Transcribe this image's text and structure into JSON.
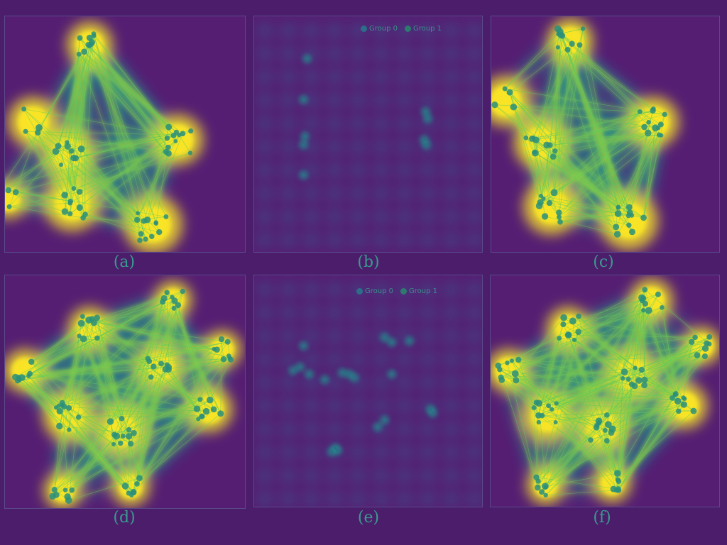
{
  "panels": [
    {
      "id": "a",
      "caption": "(a)",
      "kind": "heat"
    },
    {
      "id": "b",
      "caption": "(b)",
      "kind": "scatter"
    },
    {
      "id": "c",
      "caption": "(c)",
      "kind": "heat"
    },
    {
      "id": "d",
      "caption": "(d)",
      "kind": "heat"
    },
    {
      "id": "e",
      "caption": "(e)",
      "kind": "scatter"
    },
    {
      "id": "f",
      "caption": "(f)",
      "kind": "heat"
    }
  ],
  "legend_b": {
    "group0": "Group 0",
    "group1": "Group 1"
  },
  "legend_e": {
    "group0": "Group 0",
    "group1": "Group 1"
  },
  "colors": {
    "background": "#4c1d6b",
    "panel_bg": "#551e73",
    "low": "#3b528b",
    "mid": "#21918c",
    "high": "#fde725",
    "edge": "#5ec962",
    "node": "#2a8f7a",
    "legend_dot0": "#2c6e8a",
    "legend_dot1": "#2d7a6e"
  }
}
